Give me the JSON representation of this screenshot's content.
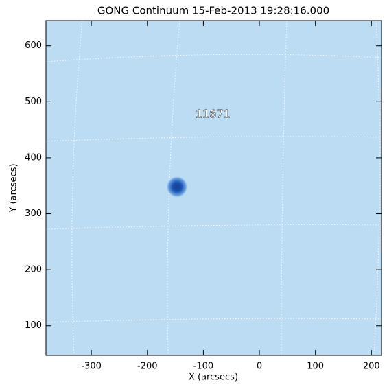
{
  "chart_data": {
    "type": "image",
    "title": "GONG Continuum 15-Feb-2013 19:28:16.000",
    "x_label": "X (arcsecs)",
    "y_label": "Y (arcsecs)",
    "xlim": [
      -381,
      218
    ],
    "ylim": [
      47,
      645
    ],
    "xticks": [
      -300,
      -200,
      -100,
      0,
      100,
      200
    ],
    "yticks": [
      100,
      200,
      300,
      400,
      500,
      600
    ],
    "background_color": "#bcdcf4",
    "annotations": [
      {
        "text": "11671",
        "x": -83,
        "y": 477
      }
    ],
    "marker": {
      "x": -147,
      "y": 348,
      "color": "#1a4fa8"
    }
  }
}
